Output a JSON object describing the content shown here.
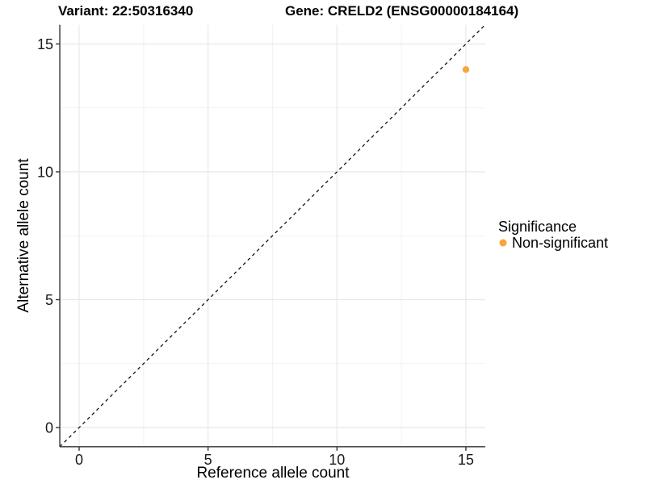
{
  "chart_data": {
    "type": "scatter",
    "title_left": "Variant: 22:50316340",
    "title_right": "Gene: CRELD2 (ENSG00000184164)",
    "xlabel": "Reference allele count",
    "ylabel": "Alternative allele count",
    "xlim": [
      -0.75,
      15.75
    ],
    "ylim": [
      -0.75,
      15.75
    ],
    "xticks": [
      0,
      5,
      10,
      15
    ],
    "yticks": [
      0,
      5,
      10,
      15
    ],
    "xticks_minor": [
      2.5,
      7.5,
      12.5
    ],
    "yticks_minor": [
      2.5,
      7.5,
      12.5
    ],
    "grid": "major+minor",
    "identity_line": {
      "equation": "y = x",
      "style": "dashed"
    },
    "points": [
      {
        "x": 15,
        "y": 14,
        "series": "Non-significant"
      }
    ],
    "legend": {
      "title": "Significance",
      "position": "right",
      "items": [
        {
          "label": "Non-significant",
          "color": "#FAA43A"
        }
      ]
    }
  },
  "colors": {
    "point": "#FAA43A",
    "grid_major": "#E8E8E8",
    "grid_minor": "#F2F2F2",
    "axis_line": "#333333",
    "identity_line": "#111111",
    "background": "#FFFFFF"
  }
}
